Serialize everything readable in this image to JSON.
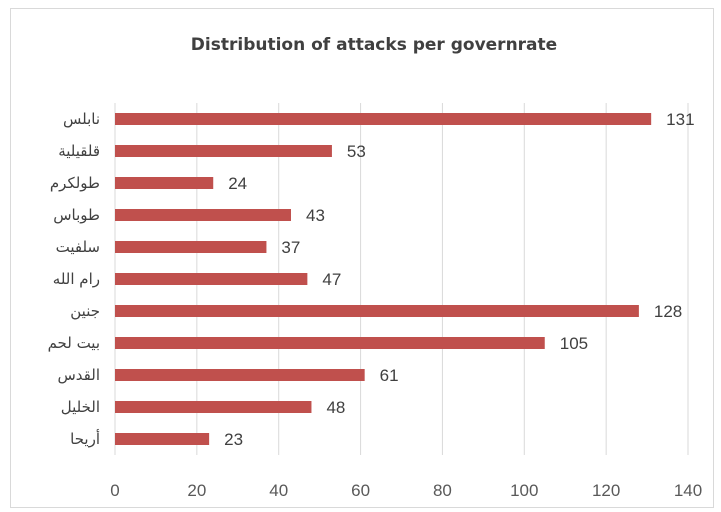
{
  "chart_data": {
    "type": "bar",
    "orientation": "horizontal",
    "title": "Distribution of attacks per governrate",
    "categories": [
      "نابلس",
      "قلقيلية",
      "طولكرم",
      "طوباس",
      "سلفيت",
      "رام الله",
      "جنين",
      "بيت لحم",
      "القدس",
      "الخليل",
      "أريحا"
    ],
    "values": [
      131,
      53,
      24,
      43,
      37,
      47,
      128,
      105,
      61,
      48,
      23
    ],
    "xlim": [
      0,
      140
    ],
    "xticks": [
      0,
      20,
      40,
      60,
      80,
      100,
      120,
      140
    ],
    "grid": true,
    "legend": "none",
    "data_labels": true,
    "colors": {
      "bar": "#c0504d",
      "grid": "#d9d9d9"
    }
  }
}
